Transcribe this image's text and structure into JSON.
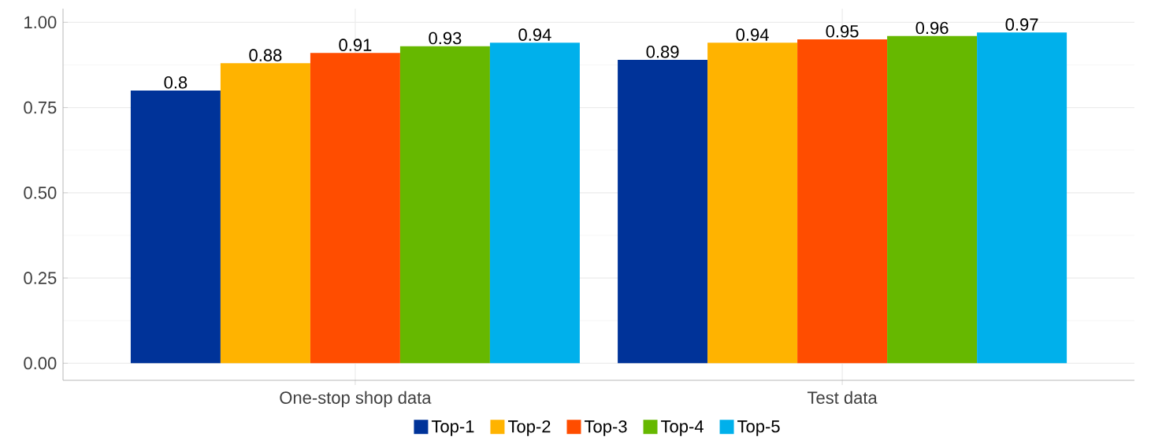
{
  "chart_data": {
    "type": "bar",
    "categories": [
      "One-stop shop data",
      "Test data"
    ],
    "series": [
      {
        "name": "Top-1",
        "color": "#003399",
        "values": [
          0.8,
          0.89
        ]
      },
      {
        "name": "Top-2",
        "color": "#ffb300",
        "values": [
          0.88,
          0.94
        ]
      },
      {
        "name": "Top-3",
        "color": "#ff4d00",
        "values": [
          0.91,
          0.95
        ]
      },
      {
        "name": "Top-4",
        "color": "#66b800",
        "values": [
          0.93,
          0.96
        ]
      },
      {
        "name": "Top-5",
        "color": "#00b0eb",
        "values": [
          0.94,
          0.97
        ]
      }
    ],
    "ylim": [
      -0.05,
      1.04
    ],
    "yticks": [
      {
        "value": 0,
        "label": "0.00"
      },
      {
        "value": 0.25,
        "label": "0.25"
      },
      {
        "value": 0.5,
        "label": "0.50"
      },
      {
        "value": 0.75,
        "label": "0.75"
      },
      {
        "value": 1,
        "label": "1.00"
      }
    ],
    "data_labels": true,
    "grid": true,
    "legend": "bottom"
  }
}
